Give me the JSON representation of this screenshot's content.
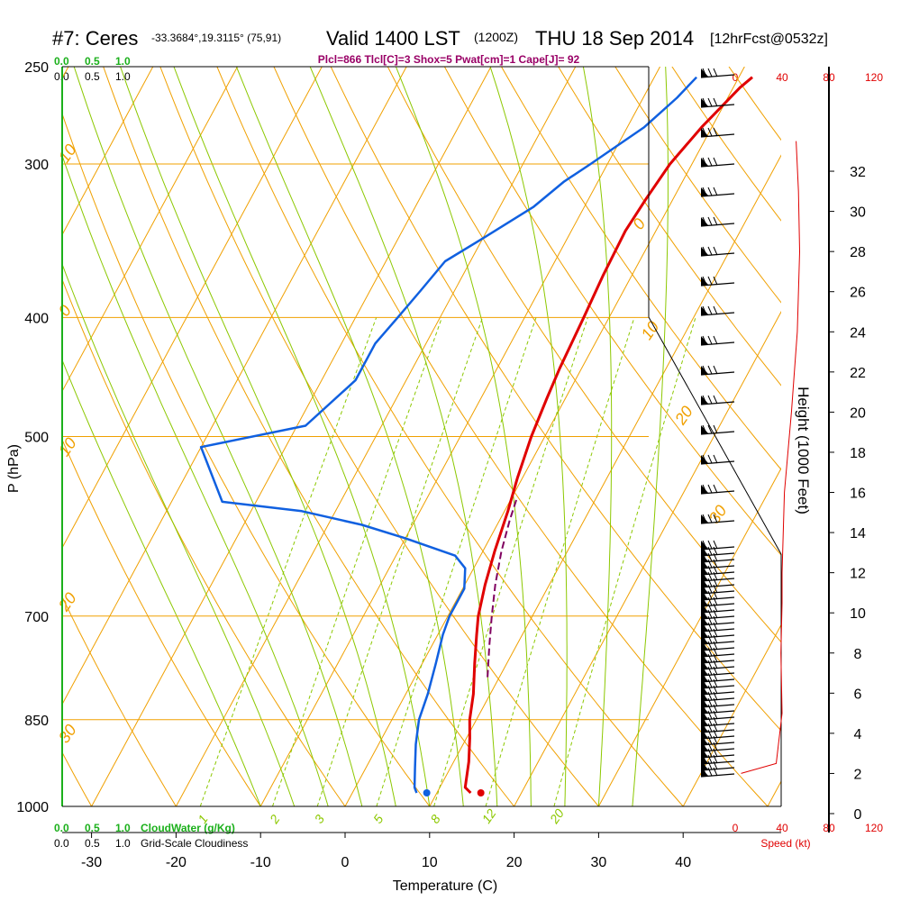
{
  "header": {
    "station": "#7: Ceres",
    "coords": "-33.3684°,19.3115° (75,91)",
    "valid": "Valid 1400 LST",
    "zulu": "(1200Z)",
    "date": "THU 18 Sep 2014",
    "forecast": "[12hrFcst@0532z]"
  },
  "indices": "Plcl=866 Tlcl[C]=3 Shox=5 Pwat[cm]=1 Cape[J]= 92",
  "axes": {
    "xlabel": "Temperature (C)",
    "ylabel": "P (hPa)",
    "height_label": "Height (1000 Feet)",
    "speed_label": "Speed (kt)",
    "cloudwater_label": "CloudWater (g/Kg)",
    "cloudiness_label": "Grid-Scale Cloudiness"
  },
  "scales": {
    "green": [
      "0.0",
      "0.5",
      "1.0"
    ],
    "black": [
      "0.0",
      "0.5",
      "1.0"
    ],
    "speed": [
      "0",
      "40",
      "80",
      "120"
    ]
  },
  "colors": {
    "temperature": "#e00000",
    "dewpoint": "#1060e0",
    "isotherm": "#f0a000",
    "mixing_ratio": "#8cc800",
    "parcel": "#800060",
    "cloud": "#1bb01b"
  },
  "chart_data": {
    "type": "line",
    "title": "#7: Ceres",
    "xlabel": "Temperature (C)",
    "ylabel": "P (hPa)",
    "xlim": [
      -33,
      45
    ],
    "ylim": [
      1000,
      250
    ],
    "x_ticks": [
      -30,
      -20,
      -10,
      0,
      10,
      20,
      30,
      40
    ],
    "p_ticks": [
      1000,
      850,
      700,
      500,
      400,
      300,
      250
    ],
    "isotherm_labels": [
      {
        "text": "10",
        "t": -33,
        "p": 300
      },
      {
        "text": "0",
        "t": -33,
        "p": 400
      },
      {
        "text": "10",
        "t": -33,
        "p": 520
      },
      {
        "text": "20",
        "t": -33,
        "p": 695
      },
      {
        "text": "30",
        "t": -33,
        "p": 890
      },
      {
        "text": "0",
        "t": 35,
        "p": 340
      },
      {
        "text": "10",
        "t": 36,
        "p": 418
      },
      {
        "text": "20",
        "t": 40,
        "p": 490
      },
      {
        "text": "30",
        "t": 44,
        "p": 590
      }
    ],
    "mixing_ratio_labels": [
      "1",
      "2",
      "3",
      "5",
      "8",
      "12",
      "20"
    ],
    "series": [
      {
        "name": "Temperature",
        "points": [
          [
            14,
            975
          ],
          [
            13,
            965
          ],
          [
            11.8,
            920
          ],
          [
            10.4,
            880
          ],
          [
            9.2,
            850
          ],
          [
            8,
            810
          ],
          [
            6.2,
            765
          ],
          [
            4.6,
            725
          ],
          [
            3.6,
            700
          ],
          [
            2.4,
            660
          ],
          [
            1.4,
            620
          ],
          [
            0.4,
            575
          ],
          [
            -0.6,
            540
          ],
          [
            -1.6,
            500
          ],
          [
            -2.2,
            465
          ],
          [
            -2.6,
            440
          ],
          [
            -3.0,
            400
          ],
          [
            -3.4,
            370
          ],
          [
            -3.6,
            340
          ],
          [
            -3.2,
            320
          ],
          [
            -2.6,
            300
          ],
          [
            -1.2,
            280
          ],
          [
            0.8,
            260
          ],
          [
            1.6,
            255
          ]
        ]
      },
      {
        "name": "Dewpoint",
        "points": [
          [
            7.6,
            975
          ],
          [
            7.0,
            965
          ],
          [
            5.8,
            930
          ],
          [
            4.4,
            890
          ],
          [
            3.2,
            850
          ],
          [
            2.6,
            810
          ],
          [
            1.6,
            765
          ],
          [
            0.6,
            725
          ],
          [
            0.2,
            700
          ],
          [
            0.2,
            665
          ],
          [
            -1.0,
            640
          ],
          [
            -3.0,
            625
          ],
          [
            -10,
            605
          ],
          [
            -16,
            590
          ],
          [
            -24,
            575
          ],
          [
            -34,
            565
          ],
          [
            -40,
            510
          ],
          [
            -29,
            490
          ],
          [
            -26,
            450
          ],
          [
            -26,
            420
          ],
          [
            -25,
            400
          ],
          [
            -24,
            380
          ],
          [
            -23,
            360
          ],
          [
            -20,
            345
          ],
          [
            -16,
            325
          ],
          [
            -14,
            310
          ],
          [
            -12,
            300
          ],
          [
            -8,
            280
          ],
          [
            -6,
            265
          ],
          [
            -5,
            255
          ]
        ]
      },
      {
        "name": "Parcel",
        "points": [
          [
            8.6,
            785
          ],
          [
            6.8,
            740
          ],
          [
            5.2,
            700
          ],
          [
            3.6,
            660
          ],
          [
            2.2,
            620
          ],
          [
            1.2,
            585
          ],
          [
            0.6,
            560
          ]
        ]
      }
    ],
    "surface_temp": 15.2,
    "surface_dewpoint": 8.8,
    "surface_p": 975,
    "height_ticks": [
      0,
      2,
      4,
      6,
      8,
      10,
      12,
      14,
      16,
      18,
      20,
      22,
      24,
      26,
      28,
      30,
      32
    ],
    "wind_speed_kt": [
      {
        "h": 2.0,
        "s": 5
      },
      {
        "h": 2.5,
        "s": 35
      },
      {
        "h": 5.0,
        "s": 40
      },
      {
        "h": 8.0,
        "s": 39
      },
      {
        "h": 10.5,
        "s": 40
      },
      {
        "h": 12.0,
        "s": 40
      },
      {
        "h": 16.0,
        "s": 42
      },
      {
        "h": 20.0,
        "s": 48
      },
      {
        "h": 24.0,
        "s": 53
      },
      {
        "h": 28.0,
        "s": 55
      },
      {
        "h": 31.0,
        "s": 54
      },
      {
        "h": 33.5,
        "s": 52
      }
    ]
  }
}
